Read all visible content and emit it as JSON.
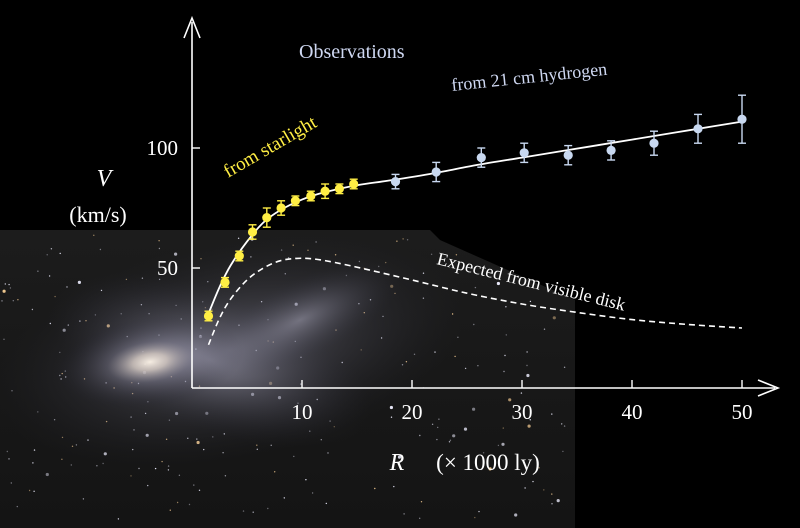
{
  "chart_data": {
    "type": "scatter",
    "xlabel_var": "R",
    "xlabel_unit": "(× 1000 ly)",
    "ylabel_var": "V",
    "ylabel_unit": "(km/s)",
    "x_ticks": [
      10,
      20,
      30,
      40,
      50
    ],
    "y_ticks": [
      50,
      100
    ],
    "xlim": [
      0,
      52
    ],
    "ylim": [
      0,
      125
    ],
    "annotations": {
      "observations": "Observations",
      "hydrogen": "from 21 cm hydrogen",
      "starlight": "from  starlight",
      "expected": "Expected from visible disk"
    },
    "series": [
      {
        "name": "from  starlight",
        "color": "#ffee44",
        "points": [
          {
            "x": 1.5,
            "y": 30,
            "err": 2
          },
          {
            "x": 3.0,
            "y": 44,
            "err": 2
          },
          {
            "x": 4.3,
            "y": 55,
            "err": 2
          },
          {
            "x": 5.5,
            "y": 65,
            "err": 3
          },
          {
            "x": 6.8,
            "y": 71,
            "err": 4
          },
          {
            "x": 8.1,
            "y": 75,
            "err": 3
          },
          {
            "x": 9.4,
            "y": 78,
            "err": 2
          },
          {
            "x": 10.8,
            "y": 80,
            "err": 2
          },
          {
            "x": 12.1,
            "y": 82,
            "err": 3
          },
          {
            "x": 13.4,
            "y": 83,
            "err": 2
          },
          {
            "x": 14.7,
            "y": 85,
            "err": 2
          }
        ]
      },
      {
        "name": "from 21 cm hydrogen",
        "color": "#c8d8f0",
        "points": [
          {
            "x": 18.5,
            "y": 86,
            "err": 3
          },
          {
            "x": 22.2,
            "y": 90,
            "err": 4
          },
          {
            "x": 26.3,
            "y": 96,
            "err": 4
          },
          {
            "x": 30.2,
            "y": 98,
            "err": 4
          },
          {
            "x": 34.2,
            "y": 97,
            "err": 4
          },
          {
            "x": 38.1,
            "y": 99,
            "err": 4
          },
          {
            "x": 42.0,
            "y": 102,
            "err": 5
          },
          {
            "x": 46.0,
            "y": 108,
            "err": 6
          },
          {
            "x": 50.0,
            "y": 112,
            "err": 10
          }
        ]
      }
    ],
    "fit_curve": [
      [
        1.5,
        31
      ],
      [
        2.5,
        42
      ],
      [
        3.5,
        51
      ],
      [
        5,
        61
      ],
      [
        6.5,
        69
      ],
      [
        8,
        74
      ],
      [
        10,
        78.5
      ],
      [
        12,
        81.5
      ],
      [
        15,
        84.5
      ],
      [
        18,
        86.5
      ],
      [
        22,
        89.5
      ],
      [
        26,
        93
      ],
      [
        30,
        96
      ],
      [
        34,
        99
      ],
      [
        38,
        102
      ],
      [
        42,
        105
      ],
      [
        46,
        108
      ],
      [
        50,
        111
      ]
    ],
    "expected_curve": [
      [
        1.5,
        18
      ],
      [
        2.5,
        29
      ],
      [
        3.5,
        37
      ],
      [
        5,
        45
      ],
      [
        6.5,
        50
      ],
      [
        8,
        53
      ],
      [
        9.5,
        54
      ],
      [
        11,
        53.8
      ],
      [
        13,
        52.3
      ],
      [
        16,
        49.3
      ],
      [
        20,
        45
      ],
      [
        25,
        39.5
      ],
      [
        30,
        35
      ],
      [
        35,
        31.5
      ],
      [
        40,
        28.5
      ],
      [
        45,
        26.5
      ],
      [
        50,
        25
      ]
    ]
  }
}
